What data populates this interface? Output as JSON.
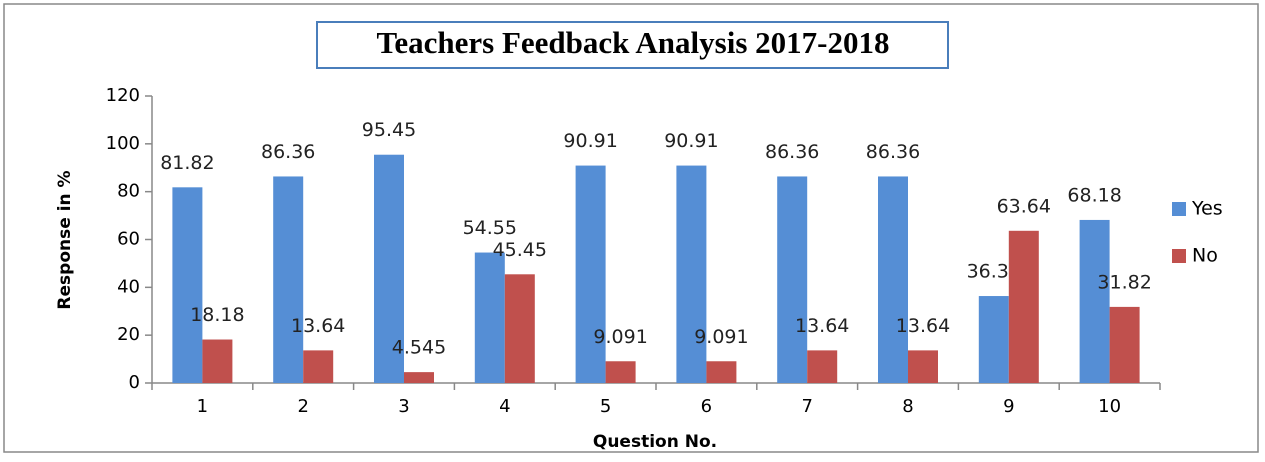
{
  "chart_data": {
    "type": "bar",
    "title": "Teachers Feedback Analysis 2017-2018",
    "x_label": "Question No.",
    "y_label": "Response in %",
    "categories": [
      "1",
      "2",
      "3",
      "4",
      "5",
      "6",
      "7",
      "8",
      "9",
      "10"
    ],
    "series": [
      {
        "name": "Yes",
        "color": "#558ed5",
        "values": [
          81.82,
          86.36,
          95.45,
          54.55,
          90.91,
          90.91,
          86.36,
          86.36,
          36.36,
          68.18
        ]
      },
      {
        "name": "No",
        "color": "#c0504d",
        "values": [
          18.18,
          13.64,
          4.545,
          45.45,
          9.091,
          9.091,
          13.64,
          13.64,
          63.64,
          31.82
        ]
      }
    ],
    "ylim": [
      0,
      120
    ],
    "yticks": [
      0,
      20,
      40,
      60,
      80,
      100,
      120
    ],
    "grid": false,
    "legend": "right"
  }
}
